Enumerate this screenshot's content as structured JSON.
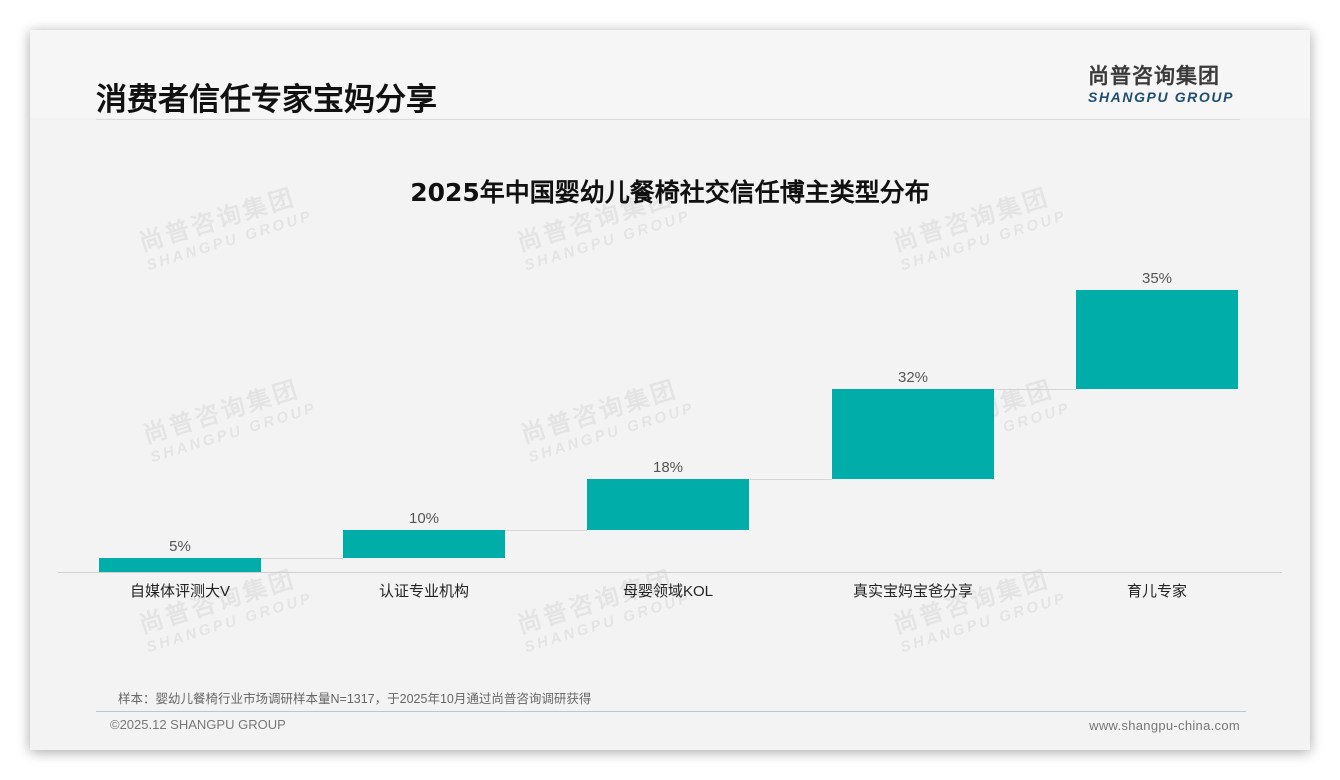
{
  "page": {
    "title": "消费者信任专家宝妈分享",
    "logo": {
      "cn": "尚普咨询集团",
      "en": "SHANGPU GROUP"
    },
    "watermark": {
      "cn": "尚普咨询集团",
      "en": "SHANGPU GROUP"
    },
    "note": "样本：婴幼儿餐椅行业市场调研样本量N=1317，于2025年10月通过尚普咨询调研获得",
    "copyright": "©2025.12 SHANGPU GROUP",
    "website": "www.shangpu-china.com",
    "colors": {
      "bar": "#00ada8",
      "title": "#111111",
      "logo_en": "#1e4e72"
    }
  },
  "chart_data": {
    "type": "waterfall",
    "title": "2025年中国婴幼儿餐椅社交信任博主类型分布",
    "categories": [
      "自媒体评测大V",
      "认证专业机构",
      "母婴领域KOL",
      "真实宝妈宝爸分享",
      "育儿专家"
    ],
    "values": [
      5,
      10,
      18,
      32,
      35
    ],
    "value_labels": [
      "5%",
      "10%",
      "18%",
      "32%",
      "35%"
    ],
    "cumulative": [
      5,
      15,
      33,
      65,
      100
    ],
    "unit": "%",
    "xlabel": "",
    "ylabel": "",
    "ylim": [
      0,
      100
    ],
    "grid": false,
    "legend": "none",
    "connectors": true
  }
}
